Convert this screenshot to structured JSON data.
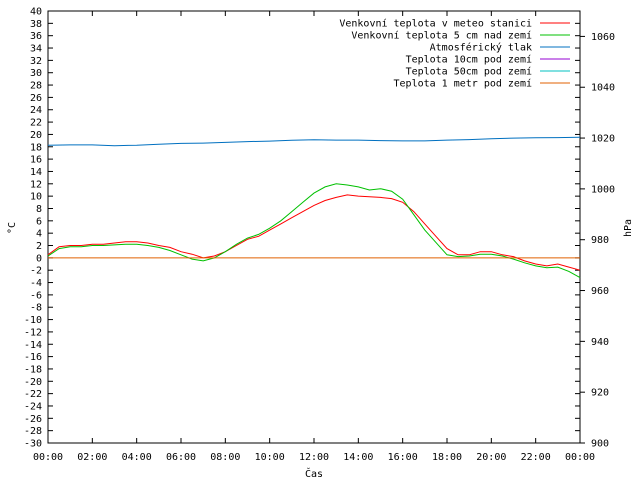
{
  "chart_data": {
    "type": "line",
    "xlabel": "Čas",
    "ylabel_left": "°C",
    "ylabel_right": "hPa",
    "x_ticks": [
      "00:00",
      "02:00",
      "04:00",
      "06:00",
      "08:00",
      "10:00",
      "12:00",
      "14:00",
      "16:00",
      "18:00",
      "20:00",
      "22:00",
      "00:00"
    ],
    "x_range_hours": [
      0,
      24
    ],
    "ylim_left": [
      -30,
      40
    ],
    "y_left_step": 2,
    "ylim_right": [
      900,
      1070
    ],
    "y_right_ticks": [
      900,
      920,
      940,
      960,
      980,
      1000,
      1020,
      1040,
      1060
    ],
    "legend_position": "top-right",
    "grid": false,
    "series": [
      {
        "name": "Venkovní teplota v meteo stanici",
        "color": "#ff0000",
        "axis": "left",
        "x": [
          0,
          0.5,
          1,
          1.5,
          2,
          2.5,
          3,
          3.5,
          4,
          4.5,
          5,
          5.5,
          6,
          6.5,
          7,
          7.5,
          8,
          8.5,
          9,
          9.5,
          10,
          10.5,
          11,
          11.5,
          12,
          12.5,
          13,
          13.5,
          14,
          14.5,
          15,
          15.5,
          16,
          16.5,
          17,
          17.5,
          18,
          18.5,
          19,
          19.5,
          20,
          20.5,
          21,
          21.5,
          22,
          22.5,
          23,
          23.5,
          24
        ],
        "y": [
          0.5,
          1.8,
          2.0,
          2.0,
          2.2,
          2.2,
          2.4,
          2.6,
          2.6,
          2.4,
          2.0,
          1.7,
          1.0,
          0.6,
          0.0,
          0.3,
          1.0,
          2.0,
          3.0,
          3.5,
          4.5,
          5.5,
          6.5,
          7.5,
          8.5,
          9.3,
          9.8,
          10.2,
          10.0,
          9.9,
          9.8,
          9.6,
          9.0,
          7.5,
          5.5,
          3.5,
          1.5,
          0.5,
          0.5,
          1.0,
          1.0,
          0.5,
          0.2,
          -0.5,
          -1.0,
          -1.3,
          -1.0,
          -1.5,
          -2.0
        ]
      },
      {
        "name": "Venkovní teplota 5 cm nad zemí",
        "color": "#00c000",
        "axis": "left",
        "x": [
          0,
          0.5,
          1,
          1.5,
          2,
          2.5,
          3,
          3.5,
          4,
          4.5,
          5,
          5.5,
          6,
          6.5,
          7,
          7.5,
          8,
          8.5,
          9,
          9.5,
          10,
          10.5,
          11,
          11.5,
          12,
          12.5,
          13,
          13.5,
          14,
          14.5,
          15,
          15.5,
          16,
          16.5,
          17,
          17.5,
          18,
          18.5,
          19,
          19.5,
          20,
          20.5,
          21,
          21.5,
          22,
          22.5,
          23,
          23.5,
          24
        ],
        "y": [
          0.3,
          1.5,
          1.8,
          1.8,
          2.0,
          2.0,
          2.1,
          2.2,
          2.2,
          2.0,
          1.7,
          1.2,
          0.5,
          -0.2,
          -0.5,
          0.0,
          1.0,
          2.2,
          3.2,
          3.8,
          4.8,
          6.0,
          7.5,
          9.0,
          10.5,
          11.5,
          12.0,
          11.8,
          11.5,
          11.0,
          11.2,
          10.8,
          9.5,
          7.0,
          4.5,
          2.5,
          0.5,
          0.2,
          0.3,
          0.6,
          0.6,
          0.3,
          -0.2,
          -0.8,
          -1.3,
          -1.6,
          -1.5,
          -2.2,
          -3.2
        ]
      },
      {
        "name": "Atmosférický tlak",
        "color": "#0070c0",
        "axis": "right",
        "x": [
          0,
          1,
          2,
          3,
          4,
          5,
          6,
          7,
          8,
          9,
          10,
          11,
          12,
          13,
          14,
          15,
          16,
          17,
          18,
          19,
          20,
          21,
          22,
          23,
          24
        ],
        "y": [
          1017.2,
          1017.3,
          1017.3,
          1017.0,
          1017.2,
          1017.6,
          1017.9,
          1018.0,
          1018.3,
          1018.6,
          1018.8,
          1019.1,
          1019.3,
          1019.2,
          1019.2,
          1019.0,
          1018.9,
          1018.9,
          1019.2,
          1019.4,
          1019.7,
          1020.0,
          1020.1,
          1020.2,
          1020.3
        ]
      },
      {
        "name": "Teplota 10cm pod zemí",
        "color": "#9400d3",
        "axis": "left",
        "x": [],
        "y": []
      },
      {
        "name": "Teplota 50cm pod zemí",
        "color": "#00c0c0",
        "axis": "left",
        "x": [],
        "y": []
      },
      {
        "name": "Teplota 1 metr pod zemí",
        "color": "#e06000",
        "axis": "left",
        "x": [
          0,
          24
        ],
        "y": [
          0,
          0
        ]
      }
    ]
  }
}
